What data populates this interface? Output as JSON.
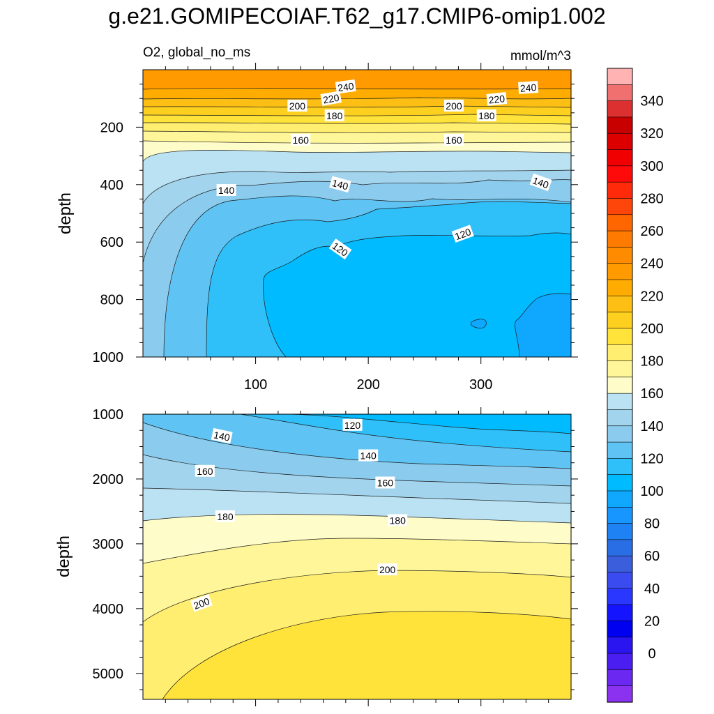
{
  "figure": {
    "title": "g.e21.GOMIPECOIAF.T62_g17.CMIP6-omip1.002",
    "variable_label": "O2, global_no_ms",
    "units_label": "mmol/m^3"
  },
  "colors": {
    "o_240_250": "#FF9A00",
    "o_230_240": "#FFAC00",
    "o_220_230": "#FDBF14",
    "o_210_220": "#FDD020",
    "o_200_210": "#FFE23A",
    "o_190_200": "#FFEE70",
    "o_180_190": "#FEF699",
    "o_170_180": "#FEFCC8",
    "o_160_170": "#BBE2F3",
    "o_150_160": "#A3D4EE",
    "o_140_150": "#8BCBED",
    "o_130_140": "#5FC4F4",
    "o_120_130": "#2FC0FA",
    "o_110_120": "#00BBFF",
    "o_100_110": "#10A8FF"
  },
  "chart_data": [
    {
      "type": "contour",
      "panel": "upper",
      "xlabel": "",
      "ylabel": "depth",
      "xlim": [
        0,
        380
      ],
      "ylim": [
        0,
        1000
      ],
      "y_reversed": true,
      "xticks": [
        100,
        200,
        300
      ],
      "yticks": [
        200,
        400,
        600,
        800,
        1000
      ],
      "contour_labels": [
        {
          "text": "240",
          "x": 180,
          "y": 60,
          "rotate": -8
        },
        {
          "text": "240",
          "x": 342,
          "y": 63,
          "rotate": -4
        },
        {
          "text": "220",
          "x": 167,
          "y": 101,
          "rotate": -10
        },
        {
          "text": "220",
          "x": 314,
          "y": 103,
          "rotate": -6
        },
        {
          "text": "200",
          "x": 137,
          "y": 126,
          "rotate": 0
        },
        {
          "text": "200",
          "x": 276,
          "y": 126,
          "rotate": 0
        },
        {
          "text": "180",
          "x": 170,
          "y": 160,
          "rotate": 0
        },
        {
          "text": "180",
          "x": 305,
          "y": 160,
          "rotate": 0
        },
        {
          "text": "160",
          "x": 140,
          "y": 245,
          "rotate": 0
        },
        {
          "text": "160",
          "x": 276,
          "y": 245,
          "rotate": 0
        },
        {
          "text": "140",
          "x": 74,
          "y": 420,
          "rotate": 0
        },
        {
          "text": "140",
          "x": 175,
          "y": 400,
          "rotate": 15
        },
        {
          "text": "140",
          "x": 353,
          "y": 393,
          "rotate": 20
        },
        {
          "text": "120",
          "x": 175,
          "y": 625,
          "rotate": 35
        },
        {
          "text": "120",
          "x": 284,
          "y": 572,
          "rotate": -20
        }
      ]
    },
    {
      "type": "contour",
      "panel": "lower",
      "xlabel": "",
      "ylabel": "depth",
      "xlim": [
        0,
        380
      ],
      "ylim": [
        1000,
        5400
      ],
      "y_reversed": true,
      "xticks": [
        100,
        200,
        300
      ],
      "yticks": [
        1000,
        2000,
        3000,
        4000,
        5000
      ],
      "contour_labels": [
        {
          "text": "120",
          "x": 186,
          "y": 1170,
          "rotate": 0
        },
        {
          "text": "140",
          "x": 70,
          "y": 1340,
          "rotate": 12
        },
        {
          "text": "140",
          "x": 200,
          "y": 1640,
          "rotate": 0
        },
        {
          "text": "160",
          "x": 55,
          "y": 1880,
          "rotate": 0
        },
        {
          "text": "160",
          "x": 215,
          "y": 2060,
          "rotate": 0
        },
        {
          "text": "180",
          "x": 73,
          "y": 2580,
          "rotate": 0
        },
        {
          "text": "180",
          "x": 226,
          "y": 2640,
          "rotate": 0
        },
        {
          "text": "200",
          "x": 217,
          "y": 3400,
          "rotate": 0
        },
        {
          "text": "200",
          "x": 52,
          "y": 3920,
          "rotate": -20
        }
      ]
    }
  ],
  "colorbar": {
    "labels": [
      "340",
      "320",
      "300",
      "280",
      "260",
      "240",
      "220",
      "200",
      "180",
      "160",
      "140",
      "120",
      "100",
      "80",
      "60",
      "40",
      "20",
      "0"
    ],
    "colors": [
      "#FFB3B3",
      "#F07070",
      "#DC3030",
      "#C80000",
      "#DC0000",
      "#F00000",
      "#FF0A0A",
      "#FF2A0A",
      "#FF460A",
      "#FF6600",
      "#FF7A00",
      "#FF8C00",
      "#FF9A00",
      "#FFAC00",
      "#FDBF14",
      "#FDD020",
      "#FFE23A",
      "#FFEE70",
      "#FEF699",
      "#FEFCC8",
      "#BBE2F3",
      "#A3D4EE",
      "#8BCBED",
      "#5FC4F4",
      "#2FC0FA",
      "#00BBFF",
      "#10A8FF",
      "#1896FF",
      "#1E82F5",
      "#2A6EE6",
      "#3A5EDC",
      "#3A4CF0",
      "#2A38FF",
      "#1414FF",
      "#0000F0",
      "#2A14F0",
      "#4A1EF0",
      "#6A28F0",
      "#8A32F0"
    ]
  }
}
